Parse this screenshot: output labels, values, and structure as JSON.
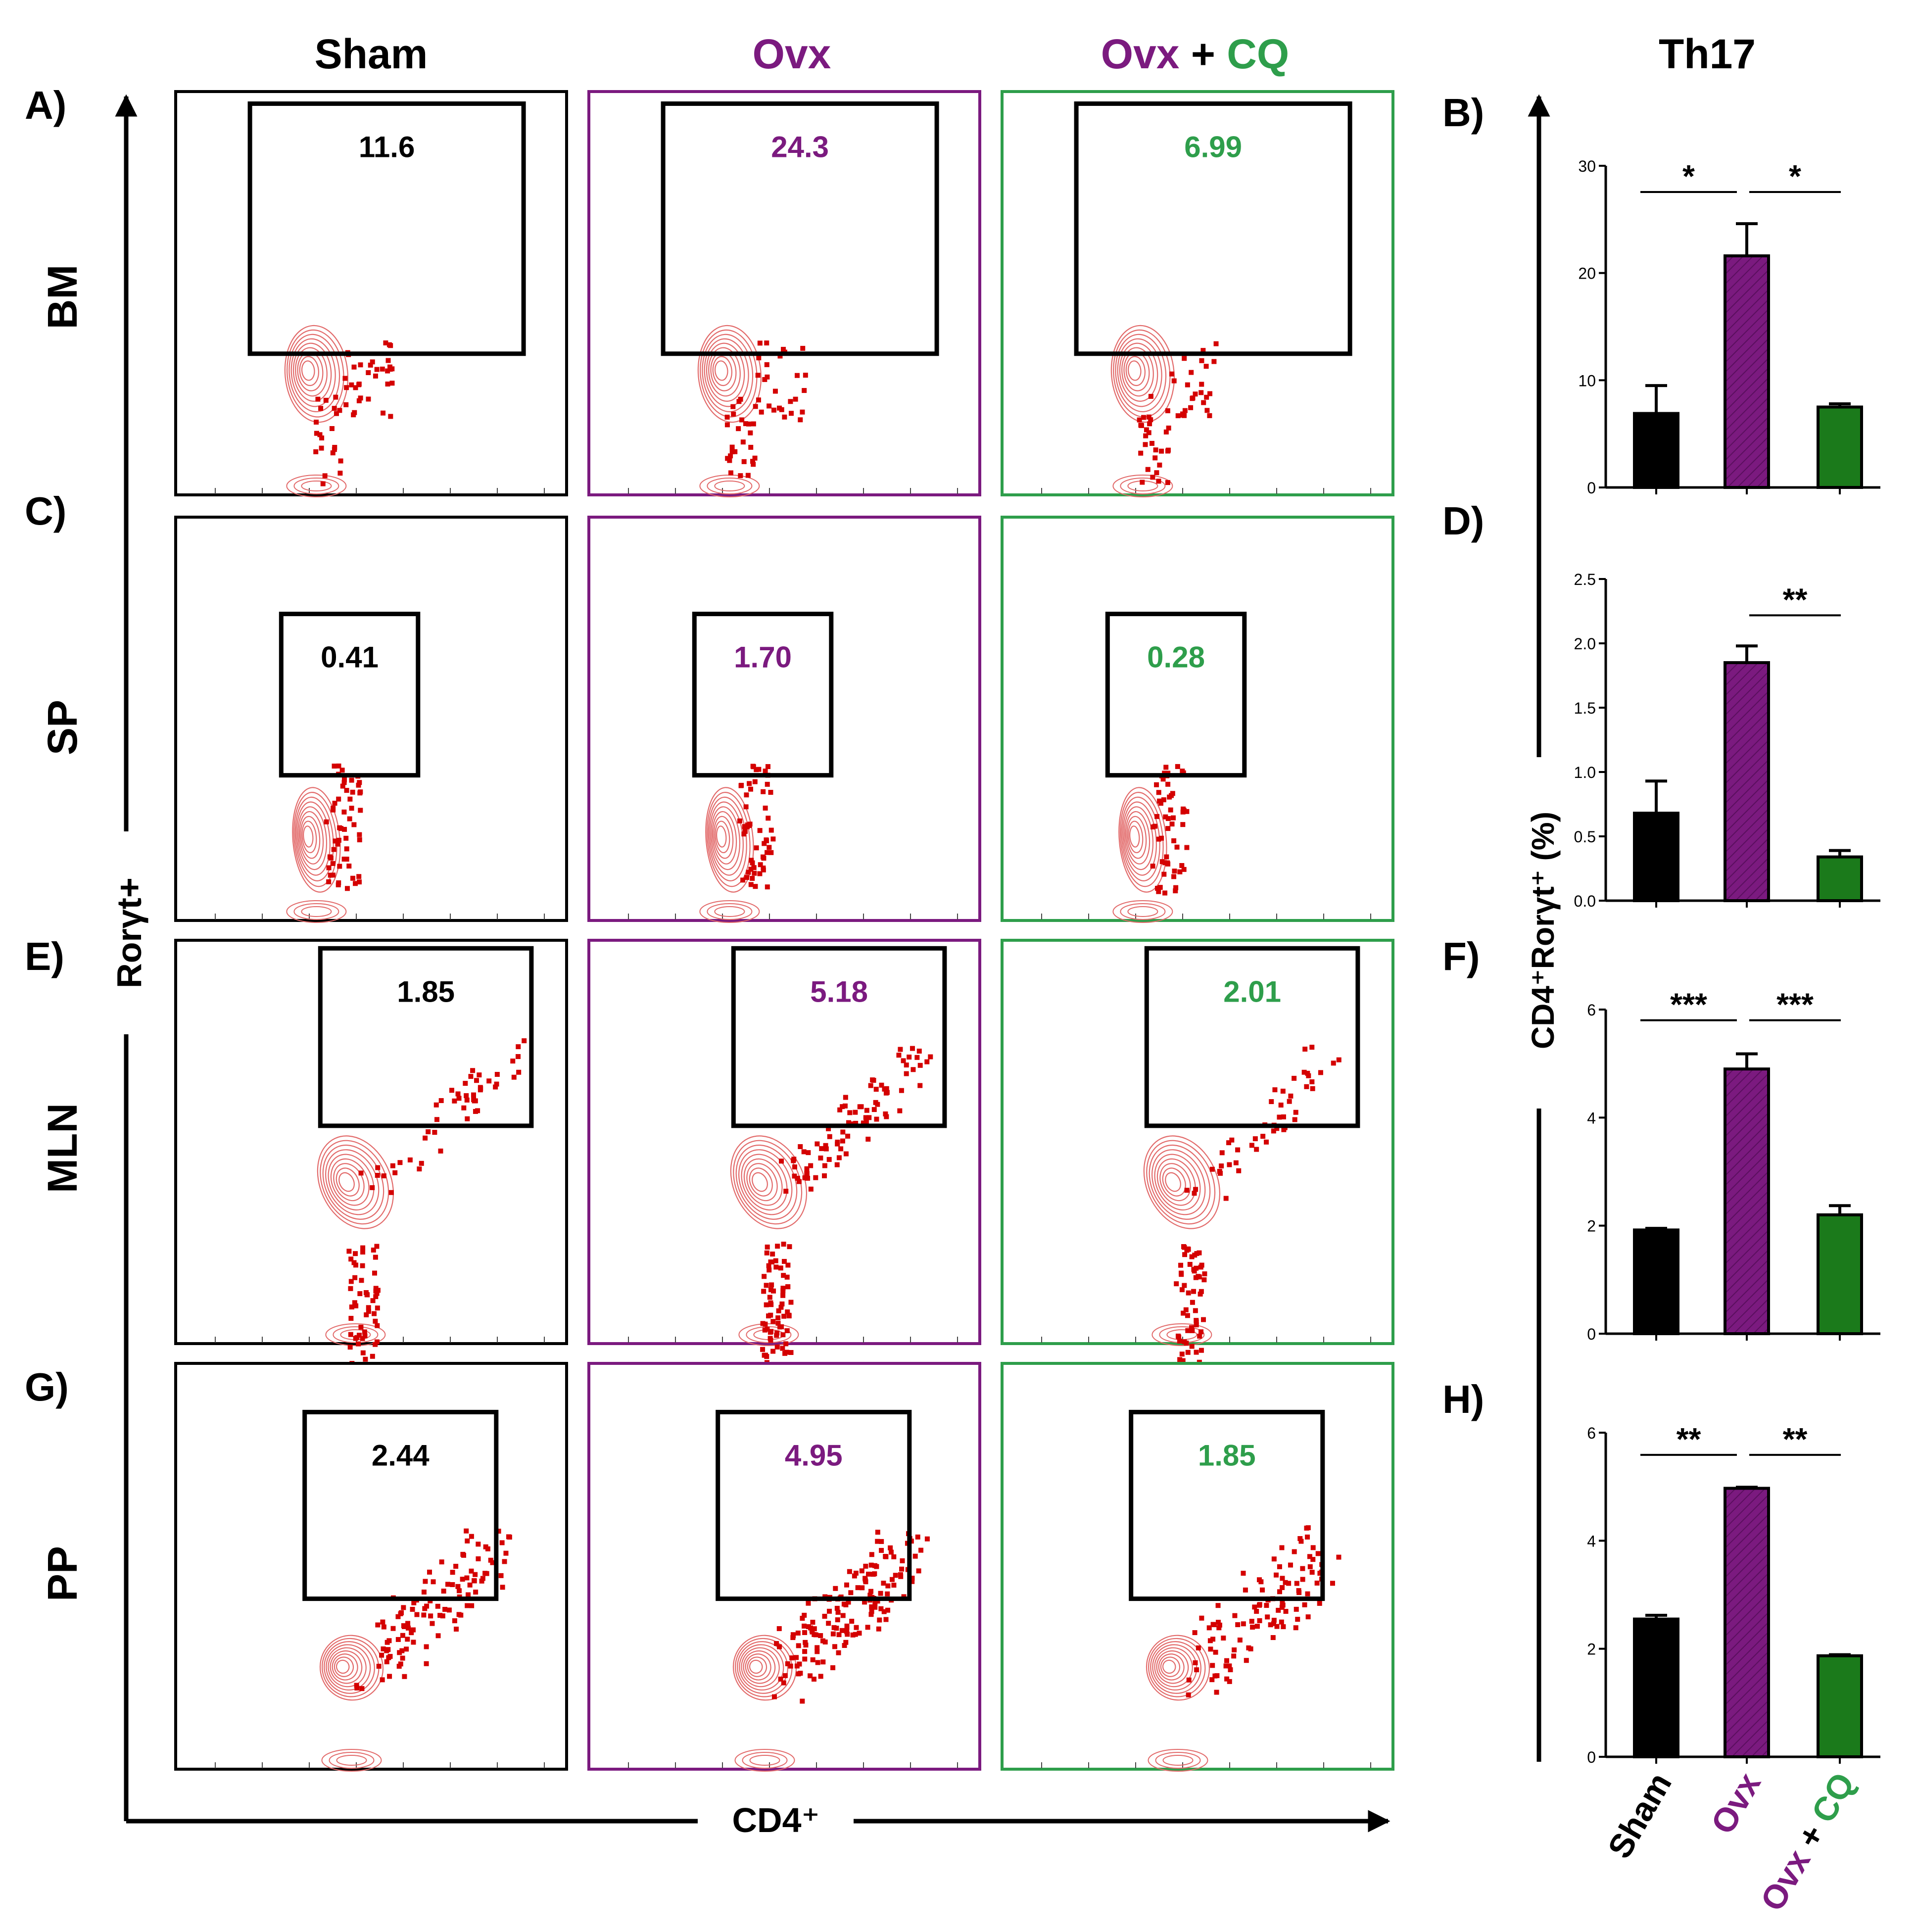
{
  "colors": {
    "sham": "#000000",
    "ovx": "#7B1A7F",
    "cq": "#2E9E4B",
    "cq_bar": "#1B7A1B",
    "dots": "#D40000",
    "contour": "#E26A6A"
  },
  "columns": {
    "sham": "Sham",
    "ovx": "Ovx",
    "ovx_cq_a": "Ovx",
    "ovx_cq_plus": "+",
    "ovx_cq_b": "CQ"
  },
  "right_title": "Th17",
  "panel_letters": {
    "a": "A)",
    "b": "B)",
    "c": "C)",
    "d": "D)",
    "e": "E)",
    "f": "F)",
    "g": "G)",
    "h": "H)"
  },
  "tissues": [
    "BM",
    "SP",
    "MLN",
    "PP"
  ],
  "flow_axes": {
    "y": "Rorγt+",
    "x": "CD4⁺"
  },
  "gate_values": [
    [
      "11.6",
      "24.3",
      "6.99"
    ],
    [
      "0.41",
      "1.70",
      "0.28"
    ],
    [
      "1.85",
      "5.18",
      "2.01"
    ],
    [
      "2.44",
      "4.95",
      "1.85"
    ]
  ],
  "bar_ylabel": "CD4⁺Rorγt⁺ (%)",
  "bar_xlabels": {
    "sham": "Sham",
    "ovx": "Ovx",
    "ovx_cq_a": "Ovx",
    "ovx_cq_plus": "+",
    "ovx_cq_b": "CQ"
  },
  "chart_data": [
    {
      "type": "bar",
      "panel": "B)",
      "tissue": "BM",
      "title": "Th17",
      "categories": [
        "Sham",
        "Ovx",
        "Ovx + CQ"
      ],
      "values": [
        6.9,
        21.6,
        7.5
      ],
      "errors": [
        2.6,
        3.0,
        0.3
      ],
      "ylim": [
        0,
        30
      ],
      "ticks": [
        0,
        10,
        20,
        30
      ],
      "tick_labels": [
        "0",
        "10",
        "20",
        "30"
      ],
      "ylabel": "CD4⁺Rorγt⁺ (%)",
      "significance": [
        {
          "from": 0,
          "to": 1,
          "label": "*"
        },
        {
          "from": 1,
          "to": 2,
          "label": "*"
        }
      ]
    },
    {
      "type": "bar",
      "panel": "D)",
      "tissue": "SP",
      "categories": [
        "Sham",
        "Ovx",
        "Ovx + CQ"
      ],
      "values": [
        0.68,
        1.85,
        0.34
      ],
      "errors": [
        0.25,
        0.13,
        0.05
      ],
      "ylim": [
        0,
        2.5
      ],
      "ticks": [
        0,
        0.5,
        1.0,
        1.5,
        2.0,
        2.5
      ],
      "tick_labels": [
        "0.0",
        "0.5",
        "1.0",
        "1.5",
        "2.0",
        "2.5"
      ],
      "ylabel": "CD4⁺Rorγt⁺ (%)",
      "significance": [
        {
          "from": 1,
          "to": 2,
          "label": "**"
        }
      ]
    },
    {
      "type": "bar",
      "panel": "F)",
      "tissue": "MLN",
      "categories": [
        "Sham",
        "Ovx",
        "Ovx + CQ"
      ],
      "values": [
        1.92,
        4.9,
        2.2
      ],
      "errors": [
        0.03,
        0.28,
        0.17
      ],
      "ylim": [
        0,
        6
      ],
      "ticks": [
        0,
        2,
        4,
        6
      ],
      "tick_labels": [
        "0",
        "2",
        "4",
        "6"
      ],
      "ylabel": "CD4⁺Rorγt⁺ (%)",
      "significance": [
        {
          "from": 0,
          "to": 1,
          "label": "***"
        },
        {
          "from": 1,
          "to": 2,
          "label": "***"
        }
      ]
    },
    {
      "type": "bar",
      "panel": "H)",
      "tissue": "PP",
      "categories": [
        "Sham",
        "Ovx",
        "Ovx + CQ"
      ],
      "values": [
        2.55,
        4.97,
        1.87
      ],
      "errors": [
        0.07,
        0.02,
        0.02
      ],
      "ylim": [
        0,
        6
      ],
      "ticks": [
        0,
        2,
        4,
        6
      ],
      "tick_labels": [
        "0",
        "2",
        "4",
        "6"
      ],
      "ylabel": "CD4⁺Rorγt⁺ (%)",
      "significance": [
        {
          "from": 0,
          "to": 1,
          "label": "**"
        },
        {
          "from": 1,
          "to": 2,
          "label": "**"
        }
      ]
    }
  ]
}
